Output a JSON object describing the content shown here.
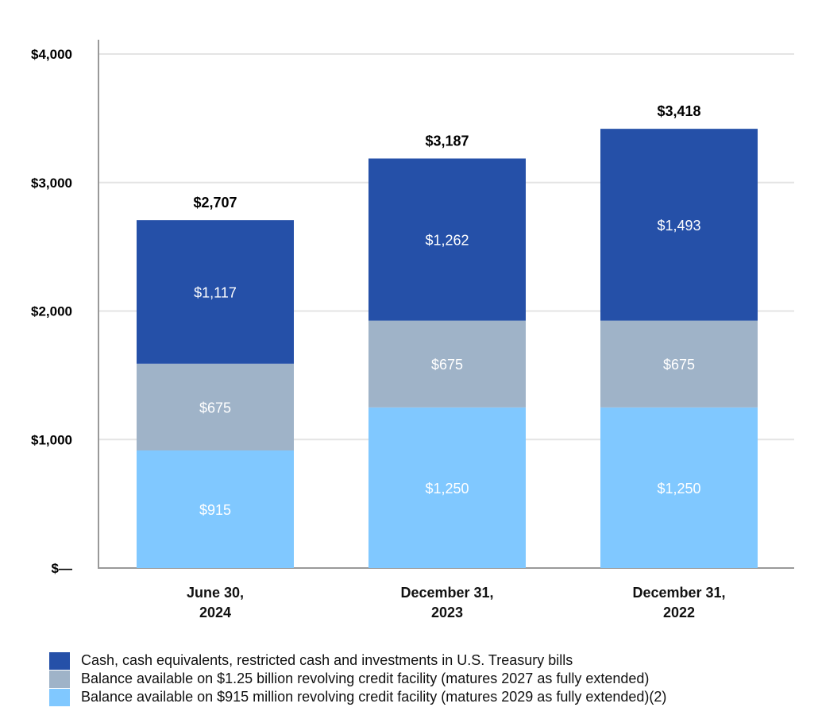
{
  "chart_data": {
    "type": "bar",
    "stacked": true,
    "categories": [
      [
        "June 30,",
        "2024"
      ],
      [
        "December 31,",
        "2023"
      ],
      [
        "December 31,",
        "2022"
      ]
    ],
    "series": [
      {
        "name": "Balance available on $915 million revolving credit facility (matures 2029 as fully extended)(2)",
        "values": [
          915,
          1250,
          1250
        ],
        "labels": [
          "$915",
          "$1,250",
          "$1,250"
        ],
        "color": "#80C8FF"
      },
      {
        "name": "Balance available on $1.25 billion revolving credit facility (matures 2027 as fully extended)",
        "values": [
          675,
          675,
          675
        ],
        "labels": [
          "$675",
          "$675",
          "$675"
        ],
        "color": "#9FB3C8"
      },
      {
        "name": "Cash, cash equivalents, restricted cash and investments in U.S. Treasury bills",
        "values": [
          1117,
          1262,
          1493
        ],
        "labels": [
          "$1,117",
          "$1,262",
          "$1,493"
        ],
        "color": "#2550A8"
      }
    ],
    "totals": [
      2707,
      3187,
      3418
    ],
    "total_labels": [
      "$2,707",
      "$3,187",
      "$3,418"
    ],
    "ylim": [
      0,
      4000
    ],
    "yticks": [
      0,
      1000,
      2000,
      3000,
      4000
    ],
    "ytick_labels": [
      "$—",
      "$1,000",
      "$2,000",
      "$3,000",
      "$4,000"
    ],
    "grid": true,
    "legend_position": "bottom",
    "legend_order": [
      2,
      1,
      0
    ],
    "title": "",
    "xlabel": "",
    "ylabel": ""
  }
}
